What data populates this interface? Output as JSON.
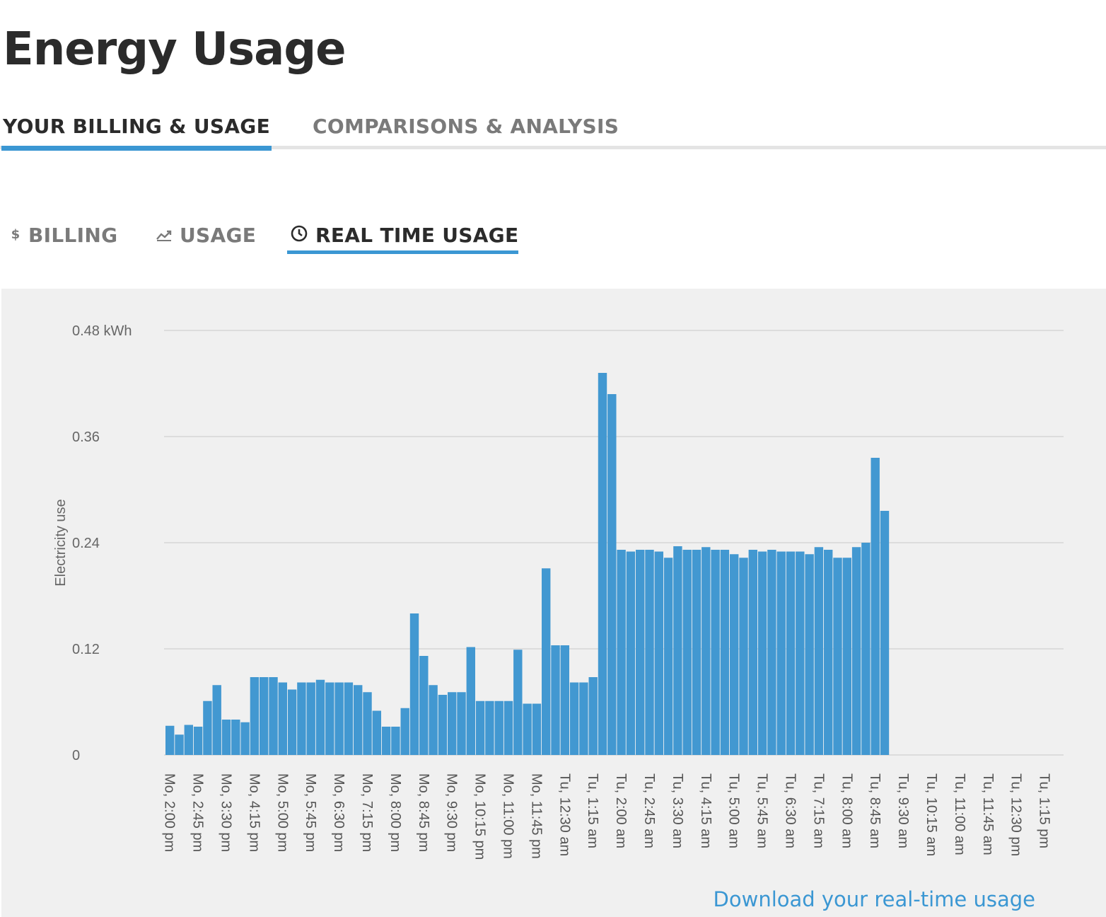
{
  "page": {
    "title": "Energy Usage"
  },
  "main_tabs": [
    {
      "label": "YOUR BILLING & USAGE",
      "active": true
    },
    {
      "label": "COMPARISONS & ANALYSIS",
      "active": false
    }
  ],
  "sub_tabs": [
    {
      "label": "BILLING",
      "icon": "dollar-icon",
      "active": false
    },
    {
      "label": "USAGE",
      "icon": "trend-icon",
      "active": false
    },
    {
      "label": "REAL TIME USAGE",
      "icon": "clock-icon",
      "active": true
    }
  ],
  "download_label": "Download your real-time usage",
  "colors": {
    "accent": "#3b97d3",
    "bar": "#4298d1",
    "panel_bg": "#f0f0f0",
    "grid": "#d6d6d6"
  },
  "chart_data": {
    "type": "bar",
    "ylabel": "Electricity use",
    "ylim": [
      0,
      0.48
    ],
    "yticks": [
      "0",
      "0.12",
      "0.24",
      "0.36",
      "0.48 kWh"
    ],
    "ytick_values": [
      0,
      0.12,
      0.24,
      0.36,
      0.48
    ],
    "interval_minutes": 15,
    "x_tick_labels": [
      "Mo, 2:00 pm",
      "Mo, 2:45 pm",
      "Mo, 3:30 pm",
      "Mo, 4:15 pm",
      "Mo, 5:00 pm",
      "Mo, 5:45 pm",
      "Mo, 6:30 pm",
      "Mo, 7:15 pm",
      "Mo, 8:00 pm",
      "Mo, 8:45 pm",
      "Mo, 9:30 pm",
      "Mo, 10:15 pm",
      "Mo, 11:00 pm",
      "Mo, 11:45 pm",
      "Tu, 12:30 am",
      "Tu, 1:15 am",
      "Tu, 2:00 am",
      "Tu, 2:45 am",
      "Tu, 3:30 am",
      "Tu, 4:15 am",
      "Tu, 5:00 am",
      "Tu, 5:45 am",
      "Tu, 6:30 am",
      "Tu, 7:15 am",
      "Tu, 8:00 am",
      "Tu, 8:45 am",
      "Tu, 9:30 am",
      "Tu, 10:15 am",
      "Tu, 11:00 am",
      "Tu, 11:45 am",
      "Tu, 12:30 pm",
      "Tu, 1:15 pm"
    ],
    "total_slots": 96,
    "values": [
      0.033,
      0.023,
      0.034,
      0.032,
      0.061,
      0.079,
      0.04,
      0.04,
      0.037,
      0.088,
      0.088,
      0.088,
      0.082,
      0.074,
      0.082,
      0.082,
      0.085,
      0.082,
      0.082,
      0.082,
      0.079,
      0.071,
      0.05,
      0.032,
      0.032,
      0.053,
      0.16,
      0.112,
      0.079,
      0.068,
      0.071,
      0.071,
      0.122,
      0.061,
      0.061,
      0.061,
      0.061,
      0.119,
      0.058,
      0.058,
      0.211,
      0.124,
      0.124,
      0.082,
      0.082,
      0.088,
      0.432,
      0.408,
      0.232,
      0.23,
      0.232,
      0.232,
      0.23,
      0.223,
      0.236,
      0.232,
      0.232,
      0.235,
      0.232,
      0.232,
      0.227,
      0.223,
      0.232,
      0.23,
      0.232,
      0.23,
      0.23,
      0.23,
      0.227,
      0.235,
      0.232,
      0.223,
      0.223,
      0.235,
      0.24,
      0.336,
      0.276
    ]
  }
}
